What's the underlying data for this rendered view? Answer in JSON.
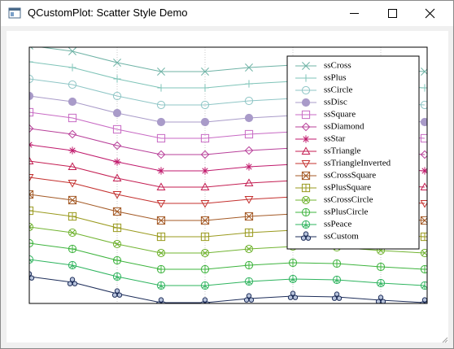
{
  "window": {
    "title": "QCustomPlot: Scatter Style Demo"
  },
  "chart_data": {
    "type": "line",
    "x": [
      0,
      53,
      108,
      162,
      216,
      270,
      324,
      378,
      432,
      486
    ],
    "xlim": [
      0,
      489
    ],
    "ylim": [
      0,
      315
    ],
    "xticks": [
      108,
      216,
      324,
      432
    ],
    "grid": true,
    "legend": "top-right",
    "series": [
      {
        "name": "ssCross",
        "marker": "cross",
        "color": "#6fb3a6",
        "values": [
          317,
          310,
          296,
          285,
          285,
          290,
          293,
          292,
          288,
          285
        ]
      },
      {
        "name": "ssPlus",
        "marker": "plus",
        "color": "#7fc4b8",
        "values": [
          297,
          290,
          276,
          265,
          265,
          270,
          273,
          272,
          268,
          265
        ]
      },
      {
        "name": "ssCircle",
        "marker": "circle",
        "color": "#8fc6c6",
        "values": [
          276,
          269,
          255,
          244,
          244,
          249,
          252,
          251,
          247,
          244
        ]
      },
      {
        "name": "ssDisc",
        "marker": "disc",
        "color": "#a99bc9",
        "values": [
          255,
          248,
          234,
          223,
          223,
          228,
          231,
          230,
          226,
          223
        ]
      },
      {
        "name": "ssSquare",
        "marker": "square",
        "color": "#c86ac4",
        "values": [
          235,
          228,
          214,
          203,
          203,
          208,
          211,
          210,
          206,
          203
        ]
      },
      {
        "name": "ssDiamond",
        "marker": "diamond",
        "color": "#b8409a",
        "values": [
          215,
          208,
          194,
          183,
          183,
          188,
          191,
          190,
          186,
          183
        ]
      },
      {
        "name": "ssStar",
        "marker": "star",
        "color": "#c01a6c",
        "values": [
          195,
          188,
          174,
          163,
          163,
          168,
          171,
          170,
          166,
          163
        ]
      },
      {
        "name": "ssTriangle",
        "marker": "triangle",
        "color": "#c41e52",
        "values": [
          175,
          168,
          154,
          143,
          143,
          148,
          151,
          150,
          146,
          143
        ]
      },
      {
        "name": "ssTriangleInverted",
        "marker": "triangle-inverted",
        "color": "#c4302e",
        "values": [
          155,
          148,
          134,
          123,
          123,
          128,
          131,
          130,
          126,
          123
        ]
      },
      {
        "name": "ssCrossSquare",
        "marker": "cross-square",
        "color": "#a45a26",
        "values": [
          134,
          127,
          113,
          102,
          102,
          107,
          110,
          109,
          105,
          102
        ]
      },
      {
        "name": "ssPlusSquare",
        "marker": "plus-square",
        "color": "#9a9a1e",
        "values": [
          114,
          107,
          93,
          82,
          82,
          87,
          90,
          89,
          85,
          82
        ]
      },
      {
        "name": "ssCrossCircle",
        "marker": "cross-circle",
        "color": "#72b432",
        "values": [
          94,
          87,
          73,
          62,
          62,
          67,
          70,
          69,
          65,
          62
        ]
      },
      {
        "name": "ssPlusCircle",
        "marker": "plus-circle",
        "color": "#3eb43e",
        "values": [
          74,
          67,
          53,
          42,
          42,
          47,
          50,
          49,
          45,
          42
        ]
      },
      {
        "name": "ssPeace",
        "marker": "peace",
        "color": "#2eb45e",
        "values": [
          54,
          47,
          33,
          22,
          22,
          27,
          30,
          29,
          25,
          22
        ]
      },
      {
        "name": "ssCustom",
        "marker": "custom",
        "color": "#1e2e5a",
        "values": [
          33,
          26,
          12,
          1,
          1,
          6,
          9,
          8,
          4,
          1
        ]
      }
    ]
  }
}
